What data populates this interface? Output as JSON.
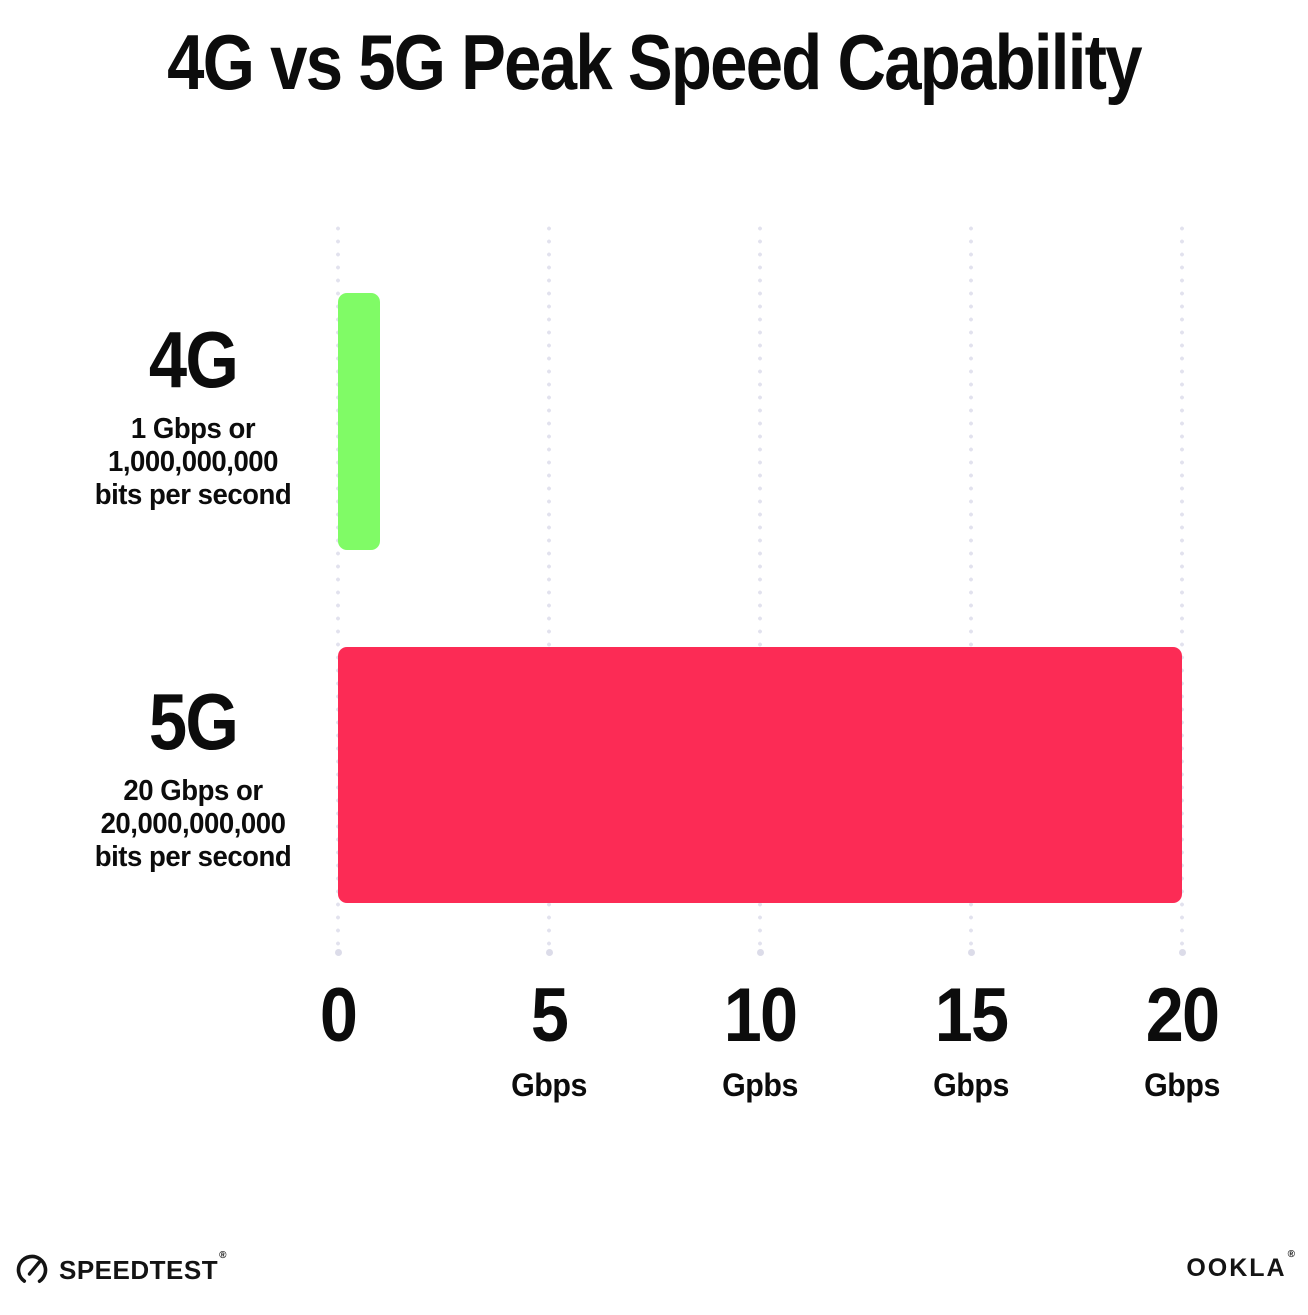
{
  "title": "4G vs 5G Peak Speed Capability",
  "chart_data": {
    "type": "bar",
    "orientation": "horizontal",
    "title": "4G vs 5G Peak Speed Capability",
    "categories": [
      "4G",
      "5G"
    ],
    "values": [
      1,
      20
    ],
    "unit": "Gbps",
    "xlim": [
      0,
      20
    ],
    "xlabel": "",
    "ylabel": "",
    "grid": "vertical dotted gridlines at 0, 5, 10, 15, 20",
    "legend_position": "none",
    "bar_colors": [
      "#80FB66",
      "#FC2B55"
    ],
    "rows": [
      {
        "label": "4G",
        "sublabel_line1": "1 Gbps or",
        "sublabel_line2": "1,000,000,000",
        "sublabel_line3": "bits per second",
        "value_gbps": 1
      },
      {
        "label": "5G",
        "sublabel_line1": "20 Gbps or",
        "sublabel_line2": "20,000,000,000",
        "sublabel_line3": "bits per second",
        "value_gbps": 20
      }
    ],
    "x_ticks": [
      {
        "label": "0",
        "unit": ""
      },
      {
        "label": "5",
        "unit": "Gbps"
      },
      {
        "label": "10",
        "unit": "Gpbs"
      },
      {
        "label": "15",
        "unit": "Gbps"
      },
      {
        "label": "20",
        "unit": "Gbps"
      }
    ]
  },
  "footer": {
    "speedtest_wordmark": "SPEEDTEST",
    "speedtest_trademark": "®",
    "ookla_wordmark": "OOKLA",
    "ookla_trademark": "®"
  },
  "colors": {
    "background": "#FFFFFF",
    "text": "#0C0C0C",
    "bar_4g": "#80FB66",
    "bar_5g": "#FC2B55",
    "gridline_dot": "#E2E2EE"
  }
}
